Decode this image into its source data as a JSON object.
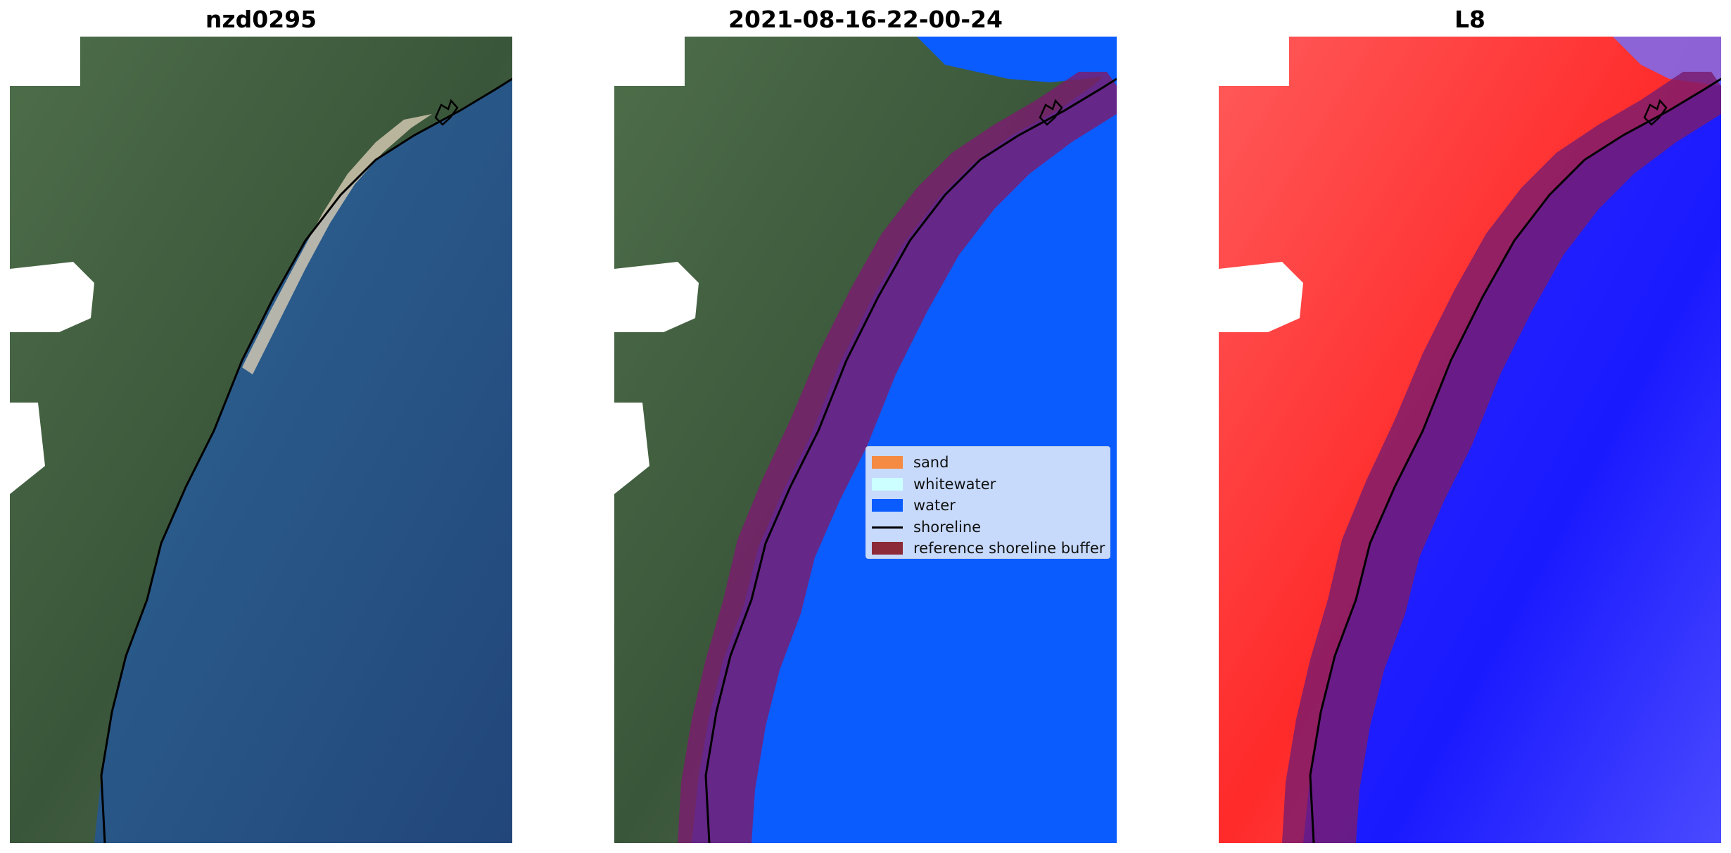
{
  "panels": [
    {
      "title": "nzd0295"
    },
    {
      "title": "2021-08-16-22-00-24"
    },
    {
      "title": "L8"
    }
  ],
  "legend": {
    "items": [
      {
        "label": "sand",
        "color": "#f58a42",
        "kind": "patch"
      },
      {
        "label": "whitewater",
        "color": "#ccffff",
        "kind": "patch"
      },
      {
        "label": "water",
        "color": "#0a5cff",
        "kind": "patch"
      },
      {
        "label": "shoreline",
        "color": "#000000",
        "kind": "line"
      },
      {
        "label": "reference shoreline buffer",
        "color": "#8c2a3a",
        "kind": "patch"
      }
    ]
  },
  "colors": {
    "sea_rgb": "#254a7e",
    "land_rgb": "#3c5a3a",
    "classified_water": "#0a5cff",
    "index_land": "#ff2a2a",
    "index_water": "#1a1aff",
    "buffer": "#8c2a3a"
  }
}
